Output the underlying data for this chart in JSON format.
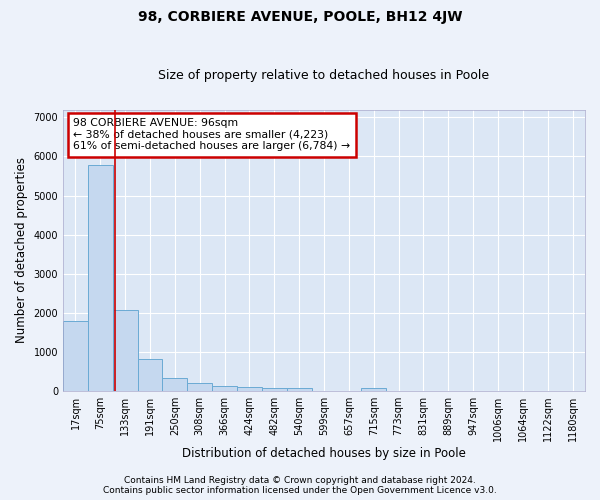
{
  "title": "98, CORBIERE AVENUE, POOLE, BH12 4JW",
  "subtitle": "Size of property relative to detached houses in Poole",
  "xlabel": "Distribution of detached houses by size in Poole",
  "ylabel": "Number of detached properties",
  "footnote1": "Contains HM Land Registry data © Crown copyright and database right 2024.",
  "footnote2": "Contains public sector information licensed under the Open Government Licence v3.0.",
  "categories": [
    "17sqm",
    "75sqm",
    "133sqm",
    "191sqm",
    "250sqm",
    "308sqm",
    "366sqm",
    "424sqm",
    "482sqm",
    "540sqm",
    "599sqm",
    "657sqm",
    "715sqm",
    "773sqm",
    "831sqm",
    "889sqm",
    "947sqm",
    "1006sqm",
    "1064sqm",
    "1122sqm",
    "1180sqm"
  ],
  "values": [
    1780,
    5780,
    2080,
    810,
    340,
    200,
    120,
    110,
    90,
    75,
    0,
    0,
    90,
    0,
    0,
    0,
    0,
    0,
    0,
    0,
    0
  ],
  "bar_color": "#c5d8ef",
  "bar_edge_color": "#6aaad4",
  "red_line_x": 1.6,
  "red_line_color": "#cc0000",
  "annotation_text": "98 CORBIERE AVENUE: 96sqm\n← 38% of detached houses are smaller (4,223)\n61% of semi-detached houses are larger (6,784) →",
  "annotation_box_color": "#cc0000",
  "ylim": [
    0,
    7200
  ],
  "yticks": [
    0,
    1000,
    2000,
    3000,
    4000,
    5000,
    6000,
    7000
  ],
  "fig_bg_color": "#edf2fa",
  "plot_bg_color": "#dce7f5",
  "grid_color": "#ffffff",
  "title_fontsize": 10,
  "subtitle_fontsize": 9,
  "axis_label_fontsize": 8.5,
  "tick_fontsize": 7,
  "annotation_fontsize": 7.8,
  "footnote_fontsize": 6.5
}
